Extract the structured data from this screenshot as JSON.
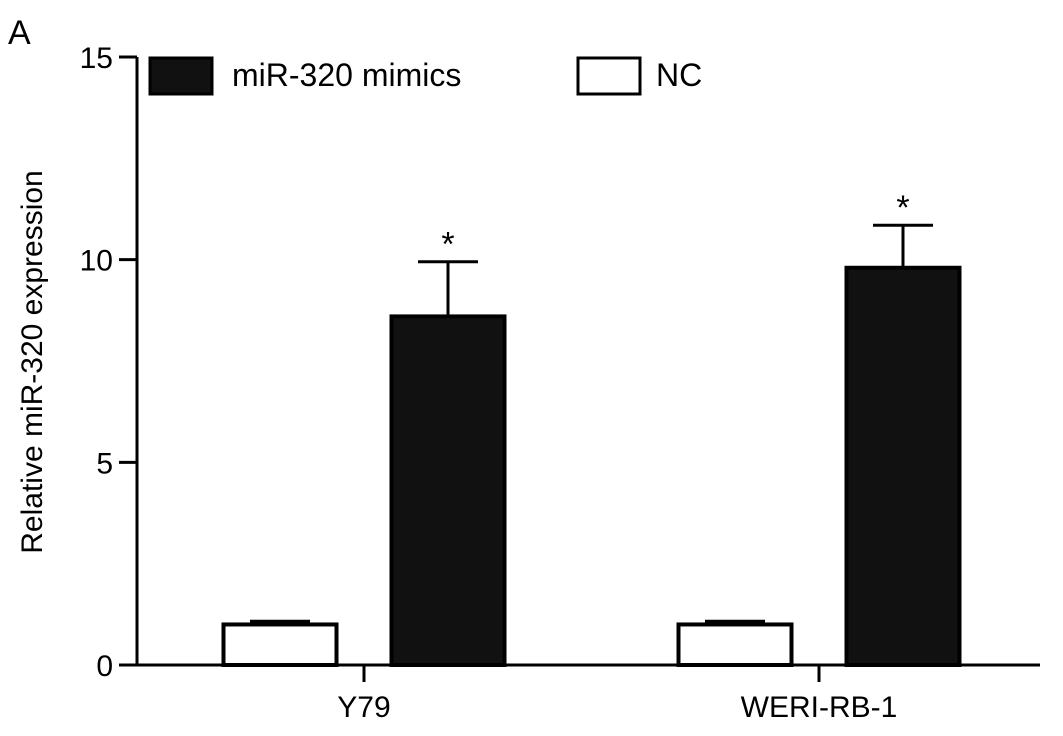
{
  "panel_label": "A",
  "chart_data": {
    "type": "bar",
    "title": "",
    "xlabel": "",
    "ylabel": "Relative miR-320 expression",
    "ylim": [
      0,
      15
    ],
    "yticks": [
      0,
      5,
      10,
      15
    ],
    "categories": [
      "Y79",
      "WERI-RB-1"
    ],
    "series": [
      {
        "name": "NC",
        "fill": "#ffffff",
        "values": [
          1.0,
          1.0
        ],
        "errors": [
          0.08,
          0.08
        ],
        "significance": [
          "",
          ""
        ]
      },
      {
        "name": "miR-320 mimics",
        "fill": "#111111",
        "values": [
          8.6,
          9.8
        ],
        "errors": [
          1.35,
          1.05
        ],
        "significance": [
          "*",
          "*"
        ]
      }
    ],
    "legend": {
      "placement": "top",
      "order": [
        "miR-320 mimics",
        "NC"
      ]
    },
    "grid": false
  }
}
